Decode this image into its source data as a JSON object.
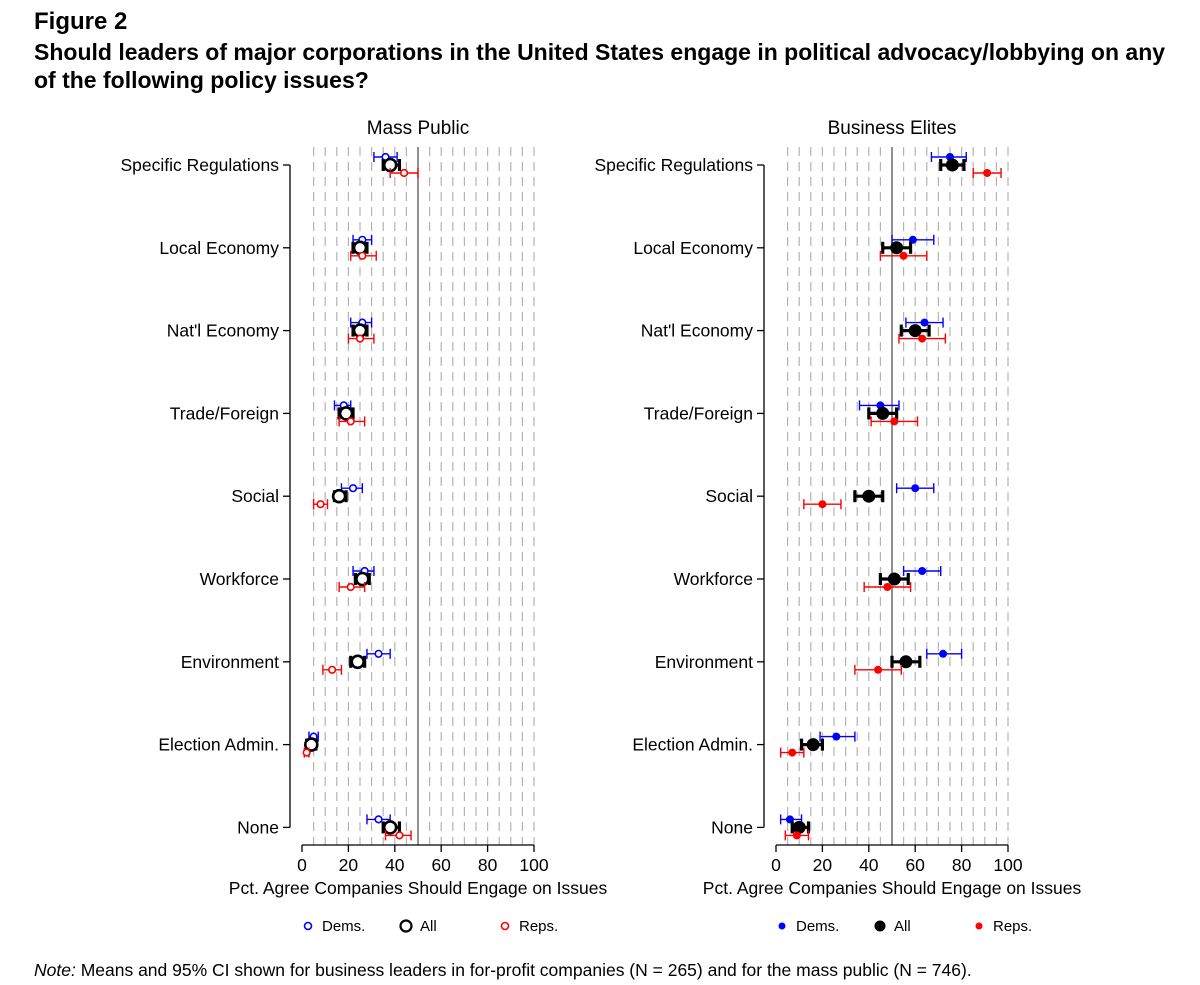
{
  "figure_label": "Figure 2",
  "title": "Should leaders of major corporations in the United States engage in political advocacy/lobbying on any of the following policy issues?",
  "note": {
    "prefix": "Note:",
    "text": " Means and 95% CI shown for business leaders in for-profit companies (N =  265) and for the mass public (N =  746)."
  },
  "colors": {
    "dems": "#0000ff",
    "all": "#000000",
    "reps": "#ff0000"
  },
  "chart_data": [
    {
      "type": "scatter",
      "title": "Mass Public",
      "xlabel": "Pct. Agree Companies Should Engage on Issues",
      "xlim": [
        0,
        100
      ],
      "xticks": [
        0,
        20,
        40,
        60,
        80,
        100
      ],
      "reference_line": 50,
      "marker_style": "hollow",
      "categories": [
        "Specific Regulations",
        "Local Economy",
        "Nat'l Economy",
        "Trade/Foreign",
        "Social",
        "Workforce",
        "Environment",
        "Election Admin.",
        "None"
      ],
      "legend": [
        "Dems.",
        "All",
        "Reps."
      ],
      "series": [
        {
          "name": "Dems.",
          "values": [
            36,
            26,
            26,
            18,
            22,
            27,
            33,
            5,
            33
          ],
          "ci_low": [
            31,
            22,
            21,
            14,
            17,
            22,
            28,
            3,
            28
          ],
          "ci_high": [
            41,
            30,
            30,
            21,
            26,
            31,
            38,
            7,
            38
          ]
        },
        {
          "name": "All",
          "values": [
            38,
            25,
            25,
            19,
            16,
            26,
            24,
            4,
            38
          ],
          "ci_low": [
            35,
            22,
            22,
            16,
            14,
            23,
            21,
            2,
            35
          ],
          "ci_high": [
            42,
            28,
            28,
            22,
            19,
            29,
            27,
            6,
            42
          ]
        },
        {
          "name": "Reps.",
          "values": [
            44,
            26,
            25,
            21,
            8,
            21,
            13,
            2,
            42
          ],
          "ci_low": [
            38,
            21,
            20,
            16,
            5,
            16,
            9,
            1,
            36
          ],
          "ci_high": [
            50,
            32,
            31,
            27,
            11,
            27,
            17,
            3,
            47
          ]
        }
      ]
    },
    {
      "type": "scatter",
      "title": "Business Elites",
      "xlabel": "Pct. Agree Companies Should Engage on Issues",
      "xlim": [
        0,
        100
      ],
      "xticks": [
        0,
        20,
        40,
        60,
        80,
        100
      ],
      "reference_line": 50,
      "marker_style": "filled",
      "categories": [
        "Specific Regulations",
        "Local Economy",
        "Nat'l Economy",
        "Trade/Foreign",
        "Social",
        "Workforce",
        "Environment",
        "Election Admin.",
        "None"
      ],
      "legend": [
        "Dems.",
        "All",
        "Reps."
      ],
      "series": [
        {
          "name": "Dems.",
          "values": [
            75,
            59,
            64,
            45,
            60,
            63,
            72,
            26,
            6
          ],
          "ci_low": [
            67,
            50,
            56,
            36,
            52,
            55,
            65,
            19,
            2
          ],
          "ci_high": [
            82,
            68,
            72,
            53,
            68,
            71,
            80,
            34,
            11
          ]
        },
        {
          "name": "All",
          "values": [
            76,
            52,
            60,
            46,
            40,
            51,
            56,
            16,
            10
          ],
          "ci_low": [
            71,
            46,
            54,
            40,
            34,
            45,
            50,
            11,
            7
          ],
          "ci_high": [
            81,
            58,
            66,
            52,
            46,
            57,
            62,
            20,
            14
          ]
        },
        {
          "name": "Reps.",
          "values": [
            91,
            55,
            63,
            51,
            20,
            48,
            44,
            7,
            9
          ],
          "ci_low": [
            85,
            45,
            53,
            41,
            12,
            38,
            34,
            2,
            4
          ],
          "ci_high": [
            97,
            65,
            73,
            61,
            28,
            58,
            54,
            12,
            14
          ]
        }
      ]
    }
  ]
}
